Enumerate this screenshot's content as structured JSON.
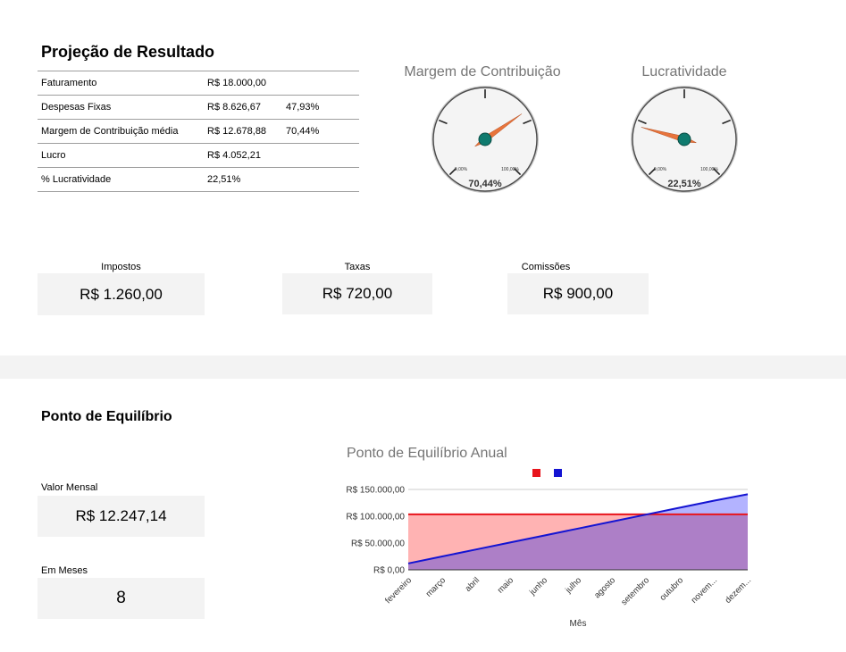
{
  "projecao": {
    "title": "Projeção de Resultado",
    "rows": [
      {
        "label": "Faturamento",
        "value": "R$ 18.000,00",
        "pct": ""
      },
      {
        "label": "Despesas Fixas",
        "value": "R$ 8.626,67",
        "pct": "47,93%"
      },
      {
        "label": "Margem de Contribuição média",
        "value": "R$ 12.678,88",
        "pct": "70,44%"
      },
      {
        "label": "Lucro",
        "value": "R$ 4.052,21",
        "pct": ""
      },
      {
        "label": "% Lucratividade",
        "value": "22,51%",
        "pct": ""
      }
    ]
  },
  "gauges": [
    {
      "title": "Margem de Contribuição",
      "value": 70.44,
      "value_label": "70,44%",
      "min_label": "0,00%",
      "max_label": "100,00%"
    },
    {
      "title": "Lucratividade",
      "value": 22.51,
      "value_label": "22,51%",
      "min_label": "0,00%",
      "max_label": "100,00%"
    }
  ],
  "kpis": {
    "impostos": {
      "label": "Impostos",
      "value": "R$ 1.260,00"
    },
    "taxas": {
      "label": "Taxas",
      "value": "R$ 720,00"
    },
    "comissoes": {
      "label": "Comissões",
      "value": "R$ 900,00"
    }
  },
  "equilibrio": {
    "title": "Ponto de Equilíbrio",
    "valor_mensal": {
      "label": "Valor Mensal",
      "value": "R$ 12.247,14"
    },
    "em_meses": {
      "label": "Em Meses",
      "value": "8"
    }
  },
  "chart_data": {
    "type": "area",
    "title": "Ponto de Equilíbrio Anual",
    "xlabel": "Mês",
    "ylabel": "",
    "categories": [
      "fevereiro",
      "março",
      "abril",
      "maio",
      "junho",
      "julho",
      "agosto",
      "setembro",
      "outubro",
      "novem...",
      "dezem..."
    ],
    "ylim": [
      0,
      150000
    ],
    "y_ticks": [
      {
        "value": 0,
        "label": "R$ 0,00"
      },
      {
        "value": 50000,
        "label": "R$ 50.000,00"
      },
      {
        "value": 100000,
        "label": "R$ 100.000,00"
      },
      {
        "value": 150000,
        "label": "R$ 150.000,00"
      }
    ],
    "series": [
      {
        "color": "#e8141c",
        "fill": "#ffb3b3",
        "values": [
          103500,
          103500,
          103500,
          103500,
          103500,
          103500,
          103500,
          103500,
          103500,
          103500,
          103500
        ]
      },
      {
        "color": "#1414d2",
        "fill": "#b3b3ff",
        "values": [
          12000,
          25000,
          38000,
          51000,
          64000,
          77000,
          90000,
          103000,
          116000,
          129000,
          141000
        ]
      }
    ],
    "overlap_fill": "#ad7fc7",
    "legend_position": "top",
    "grid": true
  }
}
